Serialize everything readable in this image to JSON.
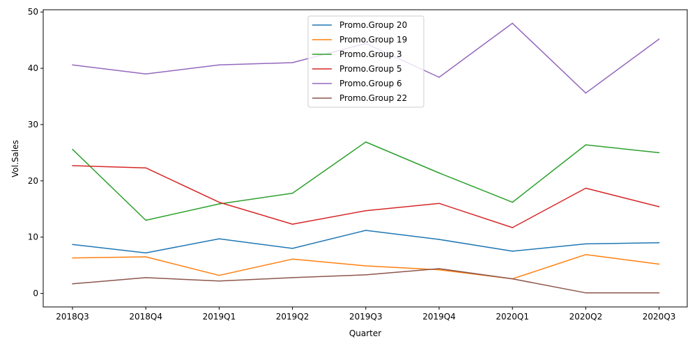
{
  "chart_data": {
    "type": "line",
    "xlabel": "Quarter",
    "ylabel": "Vol.Sales",
    "categories": [
      "2018Q3",
      "2018Q4",
      "2019Q1",
      "2019Q2",
      "2019Q3",
      "2019Q4",
      "2020Q1",
      "2020Q2",
      "2020Q3"
    ],
    "yticks": [
      0,
      10,
      20,
      30,
      40,
      50
    ],
    "ylim": [
      -2.4,
      50.4
    ],
    "grid": false,
    "legend_position": "top-center",
    "series": [
      {
        "name": "Promo.Group 20",
        "color": "#1f77b4",
        "values": [
          8.7,
          7.2,
          9.7,
          8.0,
          11.2,
          9.6,
          7.5,
          8.8,
          9.0
        ]
      },
      {
        "name": "Promo.Group 19",
        "color": "#ff7f0e",
        "values": [
          6.3,
          6.5,
          3.2,
          6.1,
          4.9,
          4.2,
          2.6,
          6.9,
          5.2
        ]
      },
      {
        "name": "Promo.Group 3",
        "color": "#2ca02c",
        "values": [
          25.6,
          13.0,
          15.9,
          17.8,
          26.9,
          21.4,
          16.2,
          26.4,
          25.0
        ]
      },
      {
        "name": "Promo.Group 5",
        "color": "#d62728",
        "values": [
          22.7,
          22.3,
          16.2,
          12.3,
          14.7,
          16.0,
          11.7,
          18.7,
          15.4
        ]
      },
      {
        "name": "Promo.Group 6",
        "color": "#9467bd",
        "values": [
          40.6,
          39.0,
          40.6,
          41.0,
          44.4,
          38.4,
          48.0,
          35.6,
          45.2
        ]
      },
      {
        "name": "Promo.Group 22",
        "color": "#8c564b",
        "values": [
          1.7,
          2.8,
          2.2,
          2.8,
          3.3,
          4.4,
          2.6,
          0.1,
          0.1
        ]
      }
    ]
  }
}
